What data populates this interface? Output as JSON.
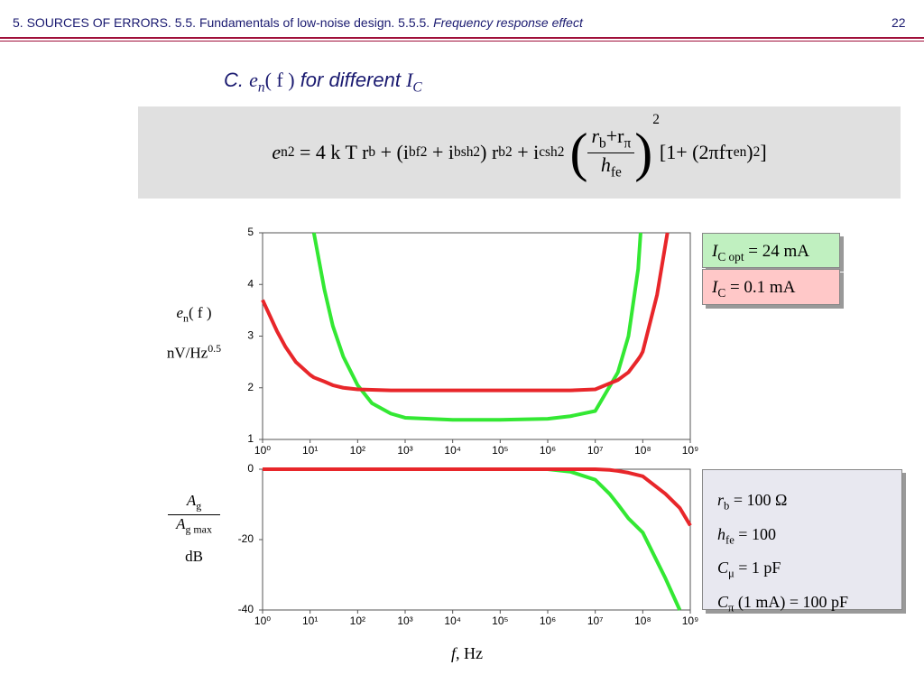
{
  "header": {
    "text": "5. SOURCES OF ERRORS. 5.5. Fundamentals of low-noise design. 5.5.5. ",
    "italic": "Frequency response effect",
    "page": "22"
  },
  "title": [
    "C. ",
    "e",
    "n",
    "( f )",
    " for different ",
    "I",
    "C"
  ],
  "formula": [
    "e",
    "n",
    "2",
    " = 4 k T r",
    "b",
    " + (i",
    "bf",
    "2",
    " + i",
    "bsh",
    "2",
    ") r",
    "b",
    "2",
    " + i",
    "csh",
    "2",
    "r",
    "b",
    "+r",
    "π",
    "h",
    "fe",
    "2",
    "[1+ (2πfτ",
    "en",
    ")",
    "2",
    "]"
  ],
  "parameters": [
    [
      "r",
      "b",
      "= 100 Ω"
    ],
    [
      "h",
      "fe",
      "= 100"
    ],
    [
      "C",
      "μ",
      "= 1 pF"
    ],
    [
      "C",
      "π",
      "(1 mA) = 100 pF"
    ]
  ],
  "chart_data": [
    {
      "type": "line",
      "xscale": "log",
      "ylabel": [
        "e",
        "n",
        "( f )",
        "nV/Hz",
        "0.5"
      ],
      "xlim": [
        1,
        1000000000
      ],
      "ylim": [
        1,
        5
      ],
      "yticks": [
        1,
        2,
        3,
        4,
        5
      ],
      "xticks": [
        {
          "value": 1,
          "label": "10⁰"
        },
        {
          "value": 10,
          "label": "10¹"
        },
        {
          "value": 100,
          "label": "10²"
        },
        {
          "value": 1000,
          "label": "10³"
        },
        {
          "value": 10000,
          "label": "10⁴"
        },
        {
          "value": 100000,
          "label": "10⁵"
        },
        {
          "value": 1000000,
          "label": "10⁶"
        },
        {
          "value": 10000000,
          "label": "10⁷"
        },
        {
          "value": 100000000,
          "label": "10⁸"
        },
        {
          "value": 1000000000,
          "label": "10⁹"
        }
      ],
      "x": [
        1,
        2,
        3,
        5,
        10,
        12,
        20,
        30,
        50,
        100,
        200,
        500,
        1000,
        10000,
        100000,
        1000000,
        3000000,
        10000000,
        30000000,
        50000000,
        80000000,
        90000000,
        100000000,
        200000000,
        330000000
      ],
      "series": [
        {
          "name": [
            "I",
            "C opt",
            "= 24 mA"
          ],
          "color": "#33e833",
          "values": [
            null,
            null,
            null,
            null,
            null,
            5,
            3.9,
            3.2,
            2.6,
            2.05,
            1.7,
            1.5,
            1.42,
            1.38,
            1.38,
            1.4,
            1.45,
            1.55,
            2.3,
            3.0,
            4.3,
            5,
            null,
            null,
            null
          ]
        },
        {
          "name": [
            "I",
            "C",
            "= 0.1 mA"
          ],
          "color": "#e8262a",
          "values": [
            3.7,
            3.1,
            2.8,
            2.5,
            2.25,
            2.2,
            2.12,
            2.05,
            2.0,
            1.97,
            1.96,
            1.95,
            1.95,
            1.95,
            1.95,
            1.95,
            1.95,
            1.97,
            2.15,
            2.3,
            2.55,
            2.62,
            2.7,
            3.8,
            5
          ]
        }
      ]
    },
    {
      "type": "line",
      "xscale": "log",
      "ylabel": [
        "A",
        "g",
        "A",
        "g max",
        "dB"
      ],
      "xlabel": [
        "f",
        ", Hz"
      ],
      "xlim": [
        1,
        1000000000
      ],
      "ylim": [
        -40,
        0
      ],
      "yticks": [
        0,
        -20,
        -40
      ],
      "xticks": [
        {
          "value": 1,
          "label": "10⁰"
        },
        {
          "value": 10,
          "label": "10¹"
        },
        {
          "value": 100,
          "label": "10²"
        },
        {
          "value": 1000,
          "label": "10³"
        },
        {
          "value": 10000,
          "label": "10⁴"
        },
        {
          "value": 100000,
          "label": "10⁵"
        },
        {
          "value": 1000000,
          "label": "10⁶"
        },
        {
          "value": 10000000,
          "label": "10⁷"
        },
        {
          "value": 100000000,
          "label": "10⁸"
        },
        {
          "value": 1000000000,
          "label": "10⁹"
        }
      ],
      "x": [
        1,
        10,
        100,
        1000,
        10000,
        100000,
        1000000,
        3000000,
        10000000,
        20000000,
        30000000,
        50000000,
        100000000,
        300000000,
        600000000,
        1000000000
      ],
      "series": [
        {
          "color": "#33e833",
          "values": [
            0,
            0,
            0,
            0,
            0,
            0,
            0,
            -0.7,
            -3,
            -7,
            -10,
            -14,
            -18,
            -31,
            -40,
            null
          ]
        },
        {
          "color": "#e8262a",
          "values": [
            0,
            0,
            0,
            0,
            0,
            0,
            0,
            0,
            0,
            -0.2,
            -0.5,
            -1,
            -2,
            -7,
            -11,
            -16
          ]
        }
      ]
    }
  ]
}
